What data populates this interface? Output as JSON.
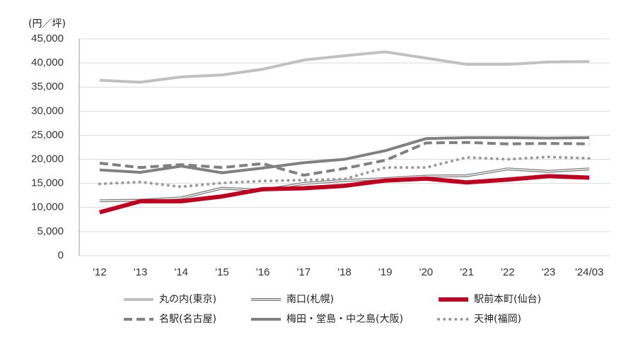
{
  "chart_data": {
    "type": "line",
    "y_unit": "(円／坪)",
    "categories": [
      "'12",
      "'13",
      "'14",
      "'15",
      "'16",
      "'17",
      "'18",
      "'19",
      "'20",
      "'21",
      "'22",
      "'23",
      "'24/03"
    ],
    "ylim": [
      0,
      45000
    ],
    "yticks": [
      0,
      {
        "value": 5000,
        "label": "5,000"
      },
      {
        "value": 10000,
        "label": "10,000"
      },
      {
        "value": 15000,
        "label": "15,000"
      },
      {
        "value": 20000,
        "label": "20,000"
      },
      {
        "value": 25000,
        "label": "25,000"
      },
      {
        "value": 30000,
        "label": "30,000"
      },
      {
        "value": 35000,
        "label": "35,000"
      },
      {
        "value": 40000,
        "label": "40,000"
      },
      {
        "value": 45000,
        "label": "45,000"
      }
    ],
    "grid": true,
    "series": [
      {
        "name": "丸の内(東京)",
        "color": "#c0c0c0",
        "style": "solid",
        "width": 4,
        "values": [
          36400,
          36000,
          37100,
          37500,
          38700,
          40600,
          41500,
          42300,
          41000,
          39700,
          39700,
          40200,
          40300
        ]
      },
      {
        "name": "南口(札幌)",
        "color": "#808080",
        "style": "double",
        "width": 4,
        "values": [
          11400,
          11500,
          12000,
          14000,
          13600,
          15000,
          15600,
          16000,
          16500,
          16600,
          18000,
          17500,
          18000
        ]
      },
      {
        "name": "駅前本町(仙台)",
        "color": "#c00020",
        "style": "solid",
        "width": 6,
        "values": [
          9000,
          11300,
          11300,
          12300,
          13800,
          14000,
          14500,
          15600,
          16000,
          15200,
          15800,
          16500,
          16200
        ]
      },
      {
        "name": "名駅(名古屋)",
        "color": "#808080",
        "style": "dashed",
        "width": 4,
        "values": [
          19200,
          18300,
          18900,
          18300,
          19100,
          16700,
          18100,
          19800,
          23400,
          23500,
          23200,
          23300,
          23200
        ]
      },
      {
        "name": "梅田・堂島・中之島(大阪)",
        "color": "#808080",
        "style": "solid",
        "width": 4,
        "values": [
          17800,
          17300,
          18600,
          17200,
          18200,
          19300,
          20000,
          21800,
          24300,
          24500,
          24500,
          24400,
          24500
        ]
      },
      {
        "name": "天神(福岡)",
        "color": "#999999",
        "style": "dotted",
        "width": 4,
        "values": [
          14900,
          15300,
          14300,
          15100,
          15500,
          15700,
          15900,
          18300,
          18300,
          20400,
          20000,
          20500,
          20200
        ]
      }
    ]
  }
}
